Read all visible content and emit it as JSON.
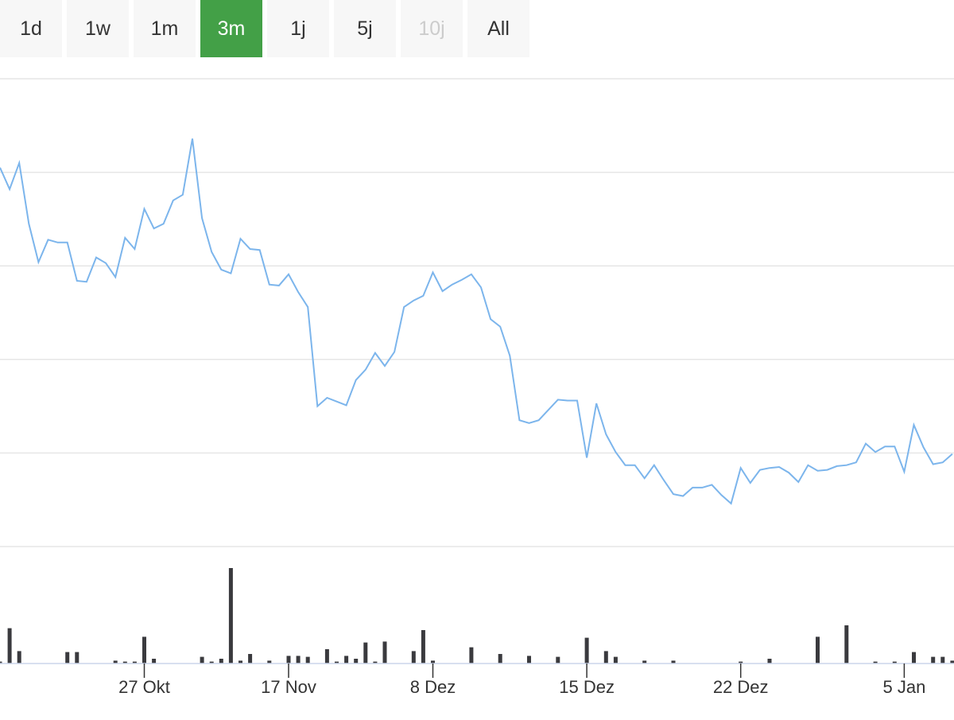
{
  "range_selector": {
    "buttons": [
      {
        "label": "1d",
        "state": "normal"
      },
      {
        "label": "1w",
        "state": "normal"
      },
      {
        "label": "1m",
        "state": "normal"
      },
      {
        "label": "3m",
        "state": "active"
      },
      {
        "label": "1j",
        "state": "normal"
      },
      {
        "label": "5j",
        "state": "normal"
      },
      {
        "label": "10j",
        "state": "disabled"
      },
      {
        "label": "All",
        "state": "normal"
      }
    ],
    "active_color": "#43a047"
  },
  "chart_data": {
    "type": "line",
    "grid": true,
    "colors": {
      "price_line": "#7cb5ec",
      "volume_bars": "#3a3a3e",
      "gridline": "#e6e6e6"
    },
    "x_ticks": [
      {
        "label": "27 Okt",
        "index": 15
      },
      {
        "label": "17 Nov",
        "index": 30
      },
      {
        "label": "8 Dez",
        "index": 45
      },
      {
        "label": "15 Dez",
        "index": 61
      },
      {
        "label": "22 Dez",
        "index": 77
      },
      {
        "label": "5 Jan",
        "index": 94
      }
    ],
    "price_ylim": [
      0,
      5
    ],
    "price_values": [
      4.05,
      3.82,
      4.1,
      3.45,
      3.04,
      3.28,
      3.25,
      3.25,
      2.84,
      2.83,
      3.09,
      3.03,
      2.88,
      3.3,
      3.18,
      3.61,
      3.4,
      3.45,
      3.7,
      3.76,
      4.36,
      3.51,
      3.15,
      2.96,
      2.92,
      3.29,
      3.18,
      3.17,
      2.8,
      2.79,
      2.91,
      2.72,
      2.56,
      1.5,
      1.59,
      1.55,
      1.51,
      1.78,
      1.89,
      2.07,
      1.93,
      2.08,
      2.56,
      2.63,
      2.68,
      2.93,
      2.73,
      2.8,
      2.85,
      2.91,
      2.77,
      2.43,
      2.35,
      2.04,
      1.35,
      1.32,
      1.35,
      1.46,
      1.57,
      1.56,
      1.56,
      0.95,
      1.53,
      1.2,
      1.01,
      0.87,
      0.87,
      0.73,
      0.87,
      0.71,
      0.56,
      0.54,
      0.63,
      0.63,
      0.66,
      0.55,
      0.46,
      0.84,
      0.68,
      0.82,
      0.84,
      0.85,
      0.79,
      0.69,
      0.87,
      0.81,
      0.82,
      0.86,
      0.87,
      0.9,
      1.1,
      1.01,
      1.07,
      1.07,
      0.8,
      1.3,
      1.06,
      0.88,
      0.9,
      0.99
    ],
    "volume_ylim": [
      0,
      100
    ],
    "volume_values": [
      2,
      37,
      13,
      0,
      0,
      0,
      0,
      12,
      12,
      0,
      0,
      0,
      3,
      2,
      2,
      28,
      5,
      0,
      0,
      0,
      0,
      7,
      2,
      5,
      100,
      3,
      10,
      0,
      3,
      0,
      8,
      8,
      7,
      0,
      15,
      2,
      8,
      5,
      22,
      2,
      23,
      0,
      0,
      13,
      35,
      3,
      0,
      0,
      0,
      17,
      0,
      0,
      10,
      0,
      0,
      8,
      0,
      0,
      7,
      0,
      0,
      27,
      0,
      13,
      7,
      0,
      0,
      3,
      0,
      0,
      3,
      0,
      0,
      0,
      0,
      0,
      0,
      2,
      0,
      0,
      5,
      0,
      0,
      0,
      0,
      28,
      0,
      0,
      40,
      0,
      0,
      2,
      0,
      2,
      0,
      12,
      0,
      7,
      7,
      3
    ]
  }
}
